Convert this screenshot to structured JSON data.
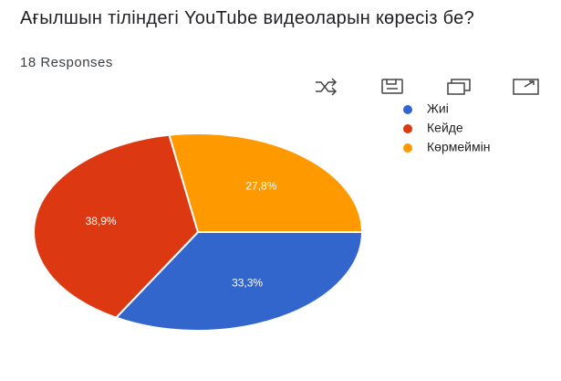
{
  "chart_data": {
    "type": "pie",
    "title": "Ағылшын тіліндегі YouTube видеоларын көресіз бе?",
    "subtitle": "18 Responses",
    "categories": [
      "Жиі",
      "Кейде",
      "Көрмеймін"
    ],
    "values": [
      33.3,
      38.9,
      27.8
    ],
    "value_labels": [
      "33,3%",
      "38,9%",
      "27,8%"
    ],
    "colors": [
      "#3366cc",
      "#dc3912",
      "#ff9900"
    ],
    "legend": "right"
  }
}
